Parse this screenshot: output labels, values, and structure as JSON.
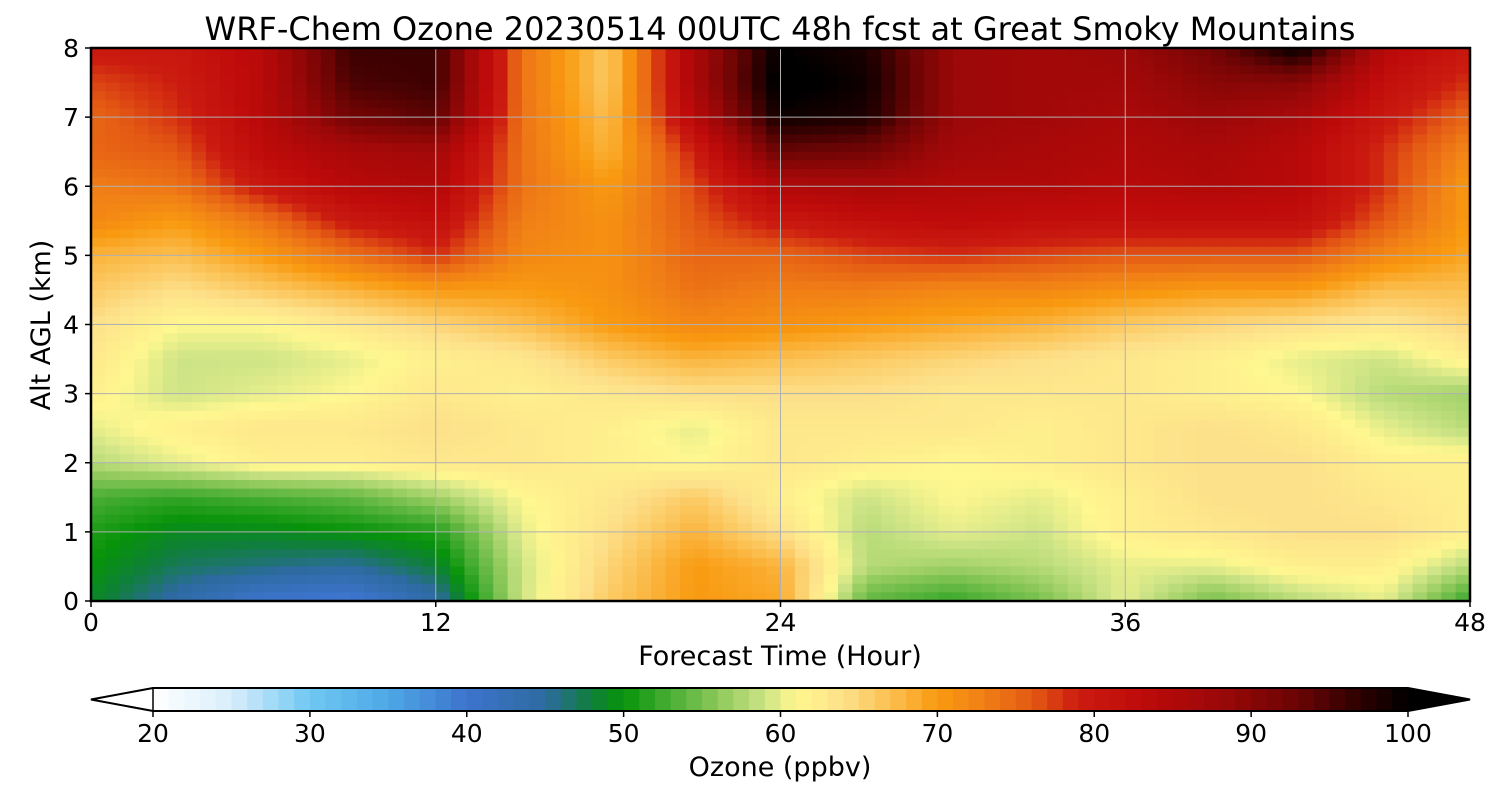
{
  "chart_data": {
    "type": "heatmap",
    "title": "WRF-Chem Ozone  20230514 00UTC 48h fcst at Great Smoky Mountains",
    "xlabel": "Forecast Time (Hour)",
    "ylabel": "Alt AGL (km)",
    "xlim": [
      0,
      48
    ],
    "ylim": [
      0,
      8
    ],
    "xticks": [
      "0",
      "12",
      "24",
      "36",
      "48"
    ],
    "yticks": [
      "0",
      "1",
      "2",
      "3",
      "4",
      "5",
      "6",
      "7",
      "8"
    ],
    "grid": true,
    "x": [
      0,
      3,
      6,
      9,
      12,
      15,
      18,
      21,
      24,
      27,
      30,
      33,
      36,
      39,
      42,
      45,
      48
    ],
    "y": [
      0,
      0.5,
      1,
      1.5,
      2,
      2.5,
      3,
      3.5,
      4,
      4.5,
      5,
      5.5,
      6,
      6.5,
      7,
      7.5,
      8
    ],
    "z": [
      [
        49,
        44,
        40,
        39,
        44,
        59,
        66,
        70,
        69,
        54,
        52,
        55,
        60,
        55,
        58,
        60,
        52
      ],
      [
        50,
        47,
        46,
        45,
        48,
        59,
        65,
        70,
        68,
        58,
        57,
        58,
        60,
        60,
        62,
        62,
        58
      ],
      [
        51,
        49,
        49,
        50,
        51,
        60,
        64,
        68,
        64,
        58,
        60,
        59,
        62,
        63,
        64,
        64,
        62
      ],
      [
        53,
        52,
        53,
        54,
        57,
        61,
        63,
        66,
        62,
        59,
        61,
        60,
        62,
        64,
        64,
        63,
        62
      ],
      [
        58,
        60,
        62,
        62,
        63,
        63,
        62,
        61,
        63,
        62,
        61,
        62,
        63,
        64,
        64,
        62,
        62
      ],
      [
        60,
        62,
        63,
        63,
        64,
        63,
        62,
        60,
        63,
        63,
        63,
        62,
        63,
        64,
        63,
        60,
        58
      ],
      [
        62,
        59,
        60,
        61,
        63,
        62,
        63,
        64,
        64,
        64,
        63,
        63,
        63,
        62,
        61,
        58,
        57
      ],
      [
        63,
        59,
        59,
        60,
        62,
        63,
        66,
        68,
        67,
        66,
        65,
        64,
        63,
        62,
        60,
        59,
        62
      ],
      [
        64,
        61,
        61,
        63,
        65,
        67,
        70,
        72,
        71,
        70,
        69,
        68,
        66,
        65,
        64,
        63,
        65
      ],
      [
        66,
        64,
        66,
        68,
        70,
        70,
        71,
        74,
        73,
        73,
        72,
        72,
        71,
        70,
        70,
        67,
        67
      ],
      [
        68,
        67,
        70,
        74,
        78,
        72,
        71,
        75,
        75,
        77,
        78,
        77,
        76,
        76,
        76,
        72,
        69
      ],
      [
        72,
        70,
        74,
        80,
        82,
        73,
        71,
        76,
        80,
        82,
        83,
        82,
        82,
        82,
        82,
        76,
        70
      ],
      [
        73,
        74,
        80,
        84,
        85,
        74,
        70,
        77,
        85,
        86,
        85,
        85,
        84,
        85,
        84,
        78,
        70
      ],
      [
        75,
        76,
        83,
        86,
        87,
        74,
        68,
        79,
        93,
        92,
        87,
        86,
        85,
        86,
        84,
        78,
        72
      ],
      [
        75,
        78,
        84,
        92,
        94,
        74,
        67,
        84,
        99,
        98,
        88,
        87,
        86,
        88,
        86,
        80,
        75
      ],
      [
        77,
        79,
        84,
        95,
        96,
        74,
        66,
        86,
        101,
        99,
        88,
        87,
        87,
        90,
        90,
        82,
        78
      ],
      [
        80,
        80,
        84,
        96,
        96,
        74,
        66,
        86,
        100,
        98,
        88,
        87,
        88,
        92,
        100,
        84,
        80
      ]
    ],
    "colorbar": {
      "label": "Ozone  (ppbv)",
      "min": 20,
      "max": 100,
      "ticks": [
        "20",
        "30",
        "40",
        "50",
        "60",
        "70",
        "80",
        "90",
        "100"
      ],
      "extend": "both",
      "colormap": [
        [
          20,
          "#ffffff"
        ],
        [
          25,
          "#d8eefb"
        ],
        [
          30,
          "#6fc7f2"
        ],
        [
          35,
          "#4ea8e6"
        ],
        [
          40,
          "#3d74cc"
        ],
        [
          45,
          "#2d6aa0"
        ],
        [
          48,
          "#0f7f3a"
        ],
        [
          50,
          "#07930a"
        ],
        [
          53,
          "#4aae35"
        ],
        [
          56,
          "#8cc85a"
        ],
        [
          59,
          "#cde486"
        ],
        [
          61,
          "#fff78f"
        ],
        [
          64,
          "#fde08a"
        ],
        [
          67,
          "#fbbf50"
        ],
        [
          70,
          "#f99a10"
        ],
        [
          73,
          "#f07e16"
        ],
        [
          76,
          "#e45a14"
        ],
        [
          79,
          "#cc1c10"
        ],
        [
          83,
          "#be0a0a"
        ],
        [
          88,
          "#9c0808"
        ],
        [
          93,
          "#6a0404"
        ],
        [
          97,
          "#2c0000"
        ],
        [
          100,
          "#000000"
        ]
      ]
    }
  }
}
